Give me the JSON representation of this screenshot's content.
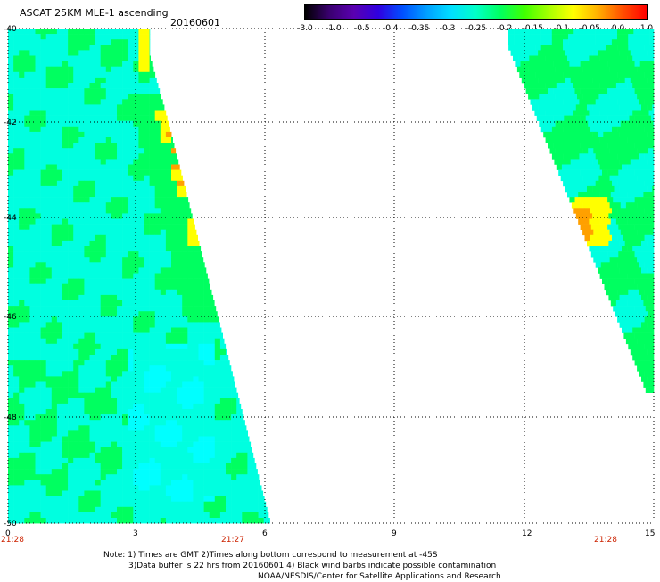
{
  "title": "ASCAT 25KM MLE-1 ascending",
  "date": "20160601",
  "colorbar": {
    "labels": [
      "-3.0",
      "-1.0",
      "-0.5",
      "-0.4",
      "-0.35",
      "-0.3",
      "-0.25",
      "-0.2",
      "-0.15",
      "-0.1",
      "-0.05",
      "0.0",
      "1.0"
    ],
    "colors": [
      "#000000",
      "#3a0070",
      "#5a00b0",
      "#3000e0",
      "#0050ff",
      "#00a0ff",
      "#00e0ff",
      "#00ffc8",
      "#00ff60",
      "#40ff00",
      "#a8ff00",
      "#ffff00",
      "#ffb000",
      "#ff5000",
      "#ff0000"
    ]
  },
  "map": {
    "y_ticks": [
      "-40",
      "-42",
      "-44",
      "-46",
      "-48",
      "-50"
    ],
    "x_ticks": [
      "0",
      "3",
      "6",
      "9",
      "12",
      "15"
    ],
    "times": [
      "21:28",
      "21:27",
      "21:28"
    ],
    "colors": {
      "cyan": "#00ffe0",
      "aqua": "#00ffff",
      "green": "#00ff60",
      "yellow": "#ffff00",
      "orange": "#ffa000",
      "grid": "#000000"
    }
  },
  "notes": {
    "line1": "Note: 1) Times are GMT 2)Times along bottom correspond to measurement at -45S",
    "line2": "3)Data buffer is 22 hrs from 20160601 4) Black wind barbs indicate possible contamination",
    "line3": "NOAA/NESDIS/Center for Satellite Applications and Research"
  }
}
